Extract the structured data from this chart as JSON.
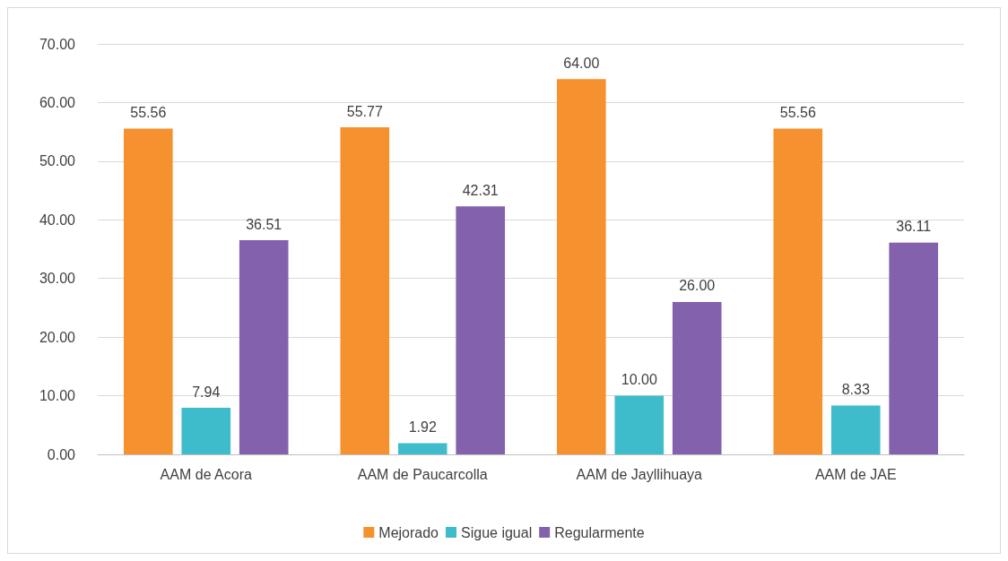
{
  "chart_data": {
    "type": "bar",
    "categories": [
      "AAM de Acora",
      "AAM de Paucarcolla",
      "AAM de Jayllihuaya",
      "AAM de JAE"
    ],
    "series": [
      {
        "name": "Mejorado",
        "color": "#f5922f",
        "values": [
          55.56,
          55.77,
          64,
          55.56
        ],
        "value_labels": [
          "55.56",
          "55.77",
          "64.00",
          "55.56"
        ]
      },
      {
        "name": "Sigue igual",
        "color": "#3fbccb",
        "values": [
          7.94,
          1.92,
          10,
          8.33
        ],
        "value_labels": [
          "7.94",
          "1.92",
          "10.00",
          "8.33"
        ]
      },
      {
        "name": "Regularmente",
        "color": "#8461ad",
        "values": [
          36.51,
          42.31,
          26,
          36.11
        ],
        "value_labels": [
          "36.51",
          "42.31",
          "26.00",
          "36.11"
        ]
      }
    ],
    "ylim": [
      0,
      70
    ],
    "yticks": [
      {
        "value": 0,
        "label": "0.00"
      },
      {
        "value": 10,
        "label": "10.00"
      },
      {
        "value": 20,
        "label": "20.00"
      },
      {
        "value": 30,
        "label": "30.00"
      },
      {
        "value": 40,
        "label": "40.00"
      },
      {
        "value": 50,
        "label": "50.00"
      },
      {
        "value": 60,
        "label": "60.00"
      },
      {
        "value": 70,
        "label": "70.00"
      }
    ],
    "grid": "y",
    "legend": "bottom"
  }
}
